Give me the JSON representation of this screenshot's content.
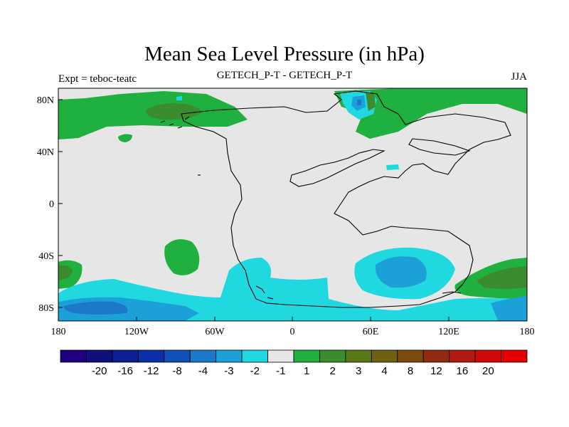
{
  "title": "Mean Sea Level Pressure (in hPa)",
  "expt_label": "Expt = teboc-teatc",
  "model_label": "GETECH_P-T - GETECH_P-T",
  "season_label": "JJA",
  "x_ticks": [
    "180",
    "120W",
    "60W",
    "0",
    "60E",
    "120E",
    "180"
  ],
  "y_ticks": [
    "80N",
    "40N",
    "0",
    "40S",
    "80S"
  ],
  "colorbar": {
    "colors": [
      "#200080",
      "#10107a",
      "#0a1f96",
      "#0a2fa8",
      "#1050b8",
      "#1c78c8",
      "#1ca0d8",
      "#20d8e0",
      "#e6e6e6",
      "#20b040",
      "#3a8c2c",
      "#5a7818",
      "#6e6010",
      "#7a4a10",
      "#902a10",
      "#b01a10",
      "#d00a0a",
      "#e40000"
    ],
    "labels": [
      "-20",
      "-16",
      "-12",
      "-8",
      "-4",
      "-3",
      "-2",
      "-1",
      "1",
      "2",
      "3",
      "4",
      "8",
      "12",
      "16",
      "20"
    ]
  }
}
